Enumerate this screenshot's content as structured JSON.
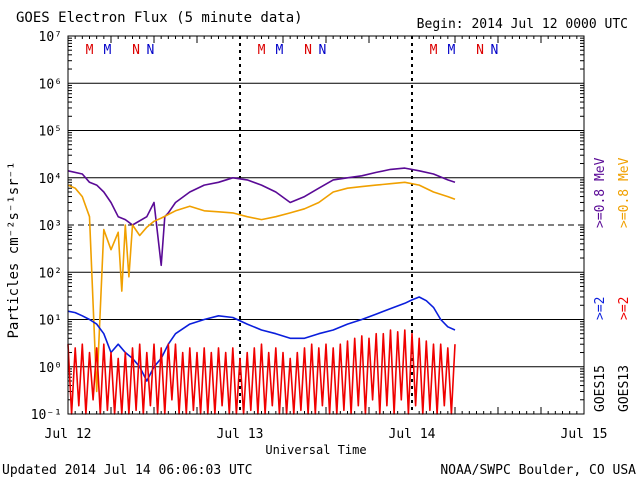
{
  "header": {
    "title": "GOES Electron Flux (5 minute data)",
    "begin": "Begin: 2014 Jul 12 0000 UTC"
  },
  "footer": {
    "updated": "Updated 2014 Jul 14 06:06:03 UTC",
    "credit": "NOAA/SWPC Boulder, CO USA"
  },
  "colors": {
    "purple": "#5a0a96",
    "orange": "#f0a000",
    "blue": "#0a1edc",
    "red": "#f00000",
    "mark_red": "#dc0000",
    "mark_blue": "#0000c8"
  },
  "chart_data": {
    "type": "line",
    "title": "GOES Electron Flux (5 minute data)",
    "xlabel": "Universal Time",
    "ylabel": "Particles cm⁻²s⁻¹sr⁻¹",
    "y_scale": "log",
    "ylim": [
      0.1,
      10000000
    ],
    "xlim": [
      "2014-07-12 00:00",
      "2014-07-15 00:00"
    ],
    "x_ticks": [
      "Jul 12",
      "Jul 13",
      "Jul 14",
      "Jul 15"
    ],
    "y_ticks": [
      "10⁻¹",
      "10⁰",
      "10¹",
      "10²",
      "10³",
      "10⁴",
      "10⁵",
      "10⁶",
      "10⁷"
    ],
    "grid": "horizontal lines at each decade; dashed at 10³; dashed vertical at day boundaries",
    "legend": {
      "right_labels_top": [
        {
          "text": ">=0.8 MeV",
          "color": "#5a0a96"
        },
        {
          "text": ">=0.8 MeV",
          "color": "#f0a000"
        }
      ],
      "right_labels_bottom": [
        {
          "text": ">=2",
          "color": "#0a1edc"
        },
        {
          "text": ">=2",
          "color": "#f00000"
        }
      ],
      "satellites": [
        "GOES15",
        "GOES13"
      ]
    },
    "markers": [
      {
        "t": "2014-07-12 03:00",
        "label": "M",
        "color": "#dc0000"
      },
      {
        "t": "2014-07-12 05:30",
        "label": "M",
        "color": "#0000c8"
      },
      {
        "t": "2014-07-12 09:30",
        "label": "N",
        "color": "#dc0000"
      },
      {
        "t": "2014-07-12 11:30",
        "label": "N",
        "color": "#0000c8"
      },
      {
        "t": "2014-07-13 03:00",
        "label": "M",
        "color": "#dc0000"
      },
      {
        "t": "2014-07-13 05:30",
        "label": "M",
        "color": "#0000c8"
      },
      {
        "t": "2014-07-13 09:30",
        "label": "N",
        "color": "#dc0000"
      },
      {
        "t": "2014-07-13 11:30",
        "label": "N",
        "color": "#0000c8"
      },
      {
        "t": "2014-07-14 03:00",
        "label": "M",
        "color": "#dc0000"
      },
      {
        "t": "2014-07-14 05:30",
        "label": "M",
        "color": "#0000c8"
      },
      {
        "t": "2014-07-14 09:30",
        "label": "N",
        "color": "#dc0000"
      },
      {
        "t": "2014-07-14 11:30",
        "label": "N",
        "color": "#0000c8"
      }
    ],
    "series": [
      {
        "color": "#5a0a96",
        "t": [
          "2014-07-12 00:00",
          "2014-07-12 02:00",
          "2014-07-12 03:00",
          "2014-07-12 04:00",
          "2014-07-12 05:00",
          "2014-07-12 06:00",
          "2014-07-12 07:00",
          "2014-07-12 08:00",
          "2014-07-12 09:00",
          "2014-07-12 11:00",
          "2014-07-12 12:00",
          "2014-07-12 13:00",
          "2014-07-12 13:30",
          "2014-07-12 14:00",
          "2014-07-12 15:00",
          "2014-07-12 17:00",
          "2014-07-12 19:00",
          "2014-07-12 21:00",
          "2014-07-12 23:00",
          "2014-07-13 01:00",
          "2014-07-13 03:00",
          "2014-07-13 05:00",
          "2014-07-13 07:00",
          "2014-07-13 09:00",
          "2014-07-13 11:00",
          "2014-07-13 13:00",
          "2014-07-13 15:00",
          "2014-07-13 17:00",
          "2014-07-13 19:00",
          "2014-07-13 21:00",
          "2014-07-13 23:00",
          "2014-07-14 01:00",
          "2014-07-14 03:00",
          "2014-07-14 05:00",
          "2014-07-14 06:00"
        ],
        "values": [
          14000,
          12000,
          8000,
          7000,
          5000,
          3000,
          1500,
          1300,
          1000,
          1500,
          3000,
          140,
          1500,
          1800,
          3000,
          5000,
          7000,
          8000,
          10000,
          9000,
          7000,
          5000,
          3000,
          4000,
          6000,
          9000,
          10000,
          11000,
          13000,
          15000,
          16000,
          14000,
          12000,
          9000,
          8000
        ]
      },
      {
        "color": "#f0a000",
        "t": [
          "2014-07-12 00:00",
          "2014-07-12 01:00",
          "2014-07-12 02:00",
          "2014-07-12 03:00",
          "2014-07-12 04:00",
          "2014-07-12 05:00",
          "2014-07-12 06:00",
          "2014-07-12 07:00",
          "2014-07-12 07:30",
          "2014-07-12 08:00",
          "2014-07-12 08:30",
          "2014-07-12 09:00",
          "2014-07-12 10:00",
          "2014-07-12 11:00",
          "2014-07-12 12:00",
          "2014-07-12 13:00",
          "2014-07-12 15:00",
          "2014-07-12 17:00",
          "2014-07-12 19:00",
          "2014-07-12 21:00",
          "2014-07-12 23:00",
          "2014-07-13 01:00",
          "2014-07-13 03:00",
          "2014-07-13 05:00",
          "2014-07-13 07:00",
          "2014-07-13 09:00",
          "2014-07-13 11:00",
          "2014-07-13 13:00",
          "2014-07-13 15:00",
          "2014-07-13 17:00",
          "2014-07-13 19:00",
          "2014-07-13 21:00",
          "2014-07-13 23:00",
          "2014-07-14 01:00",
          "2014-07-14 03:00",
          "2014-07-14 05:00",
          "2014-07-14 06:00"
        ],
        "values": [
          7000,
          6000,
          4000,
          1500,
          0.3,
          800,
          300,
          700,
          40,
          1000,
          80,
          1000,
          600,
          900,
          1200,
          1400,
          2000,
          2500,
          2000,
          1900,
          1800,
          1500,
          1300,
          1500,
          1800,
          2200,
          3000,
          5000,
          6000,
          6500,
          7000,
          7500,
          8000,
          7000,
          5000,
          4000,
          3500
        ]
      },
      {
        "color": "#0a1edc",
        "t": [
          "2014-07-12 00:00",
          "2014-07-12 01:00",
          "2014-07-12 02:00",
          "2014-07-12 03:00",
          "2014-07-12 04:00",
          "2014-07-12 05:00",
          "2014-07-12 06:00",
          "2014-07-12 07:00",
          "2014-07-12 08:00",
          "2014-07-12 09:00",
          "2014-07-12 10:00",
          "2014-07-12 11:00",
          "2014-07-12 12:00",
          "2014-07-12 13:00",
          "2014-07-12 14:00",
          "2014-07-12 15:00",
          "2014-07-12 17:00",
          "2014-07-12 19:00",
          "2014-07-12 21:00",
          "2014-07-12 23:00",
          "2014-07-13 01:00",
          "2014-07-13 03:00",
          "2014-07-13 05:00",
          "2014-07-13 07:00",
          "2014-07-13 09:00",
          "2014-07-13 11:00",
          "2014-07-13 13:00",
          "2014-07-13 15:00",
          "2014-07-13 17:00",
          "2014-07-13 19:00",
          "2014-07-13 21:00",
          "2014-07-13 23:00",
          "2014-07-14 00:00",
          "2014-07-14 01:00",
          "2014-07-14 02:00",
          "2014-07-14 03:00",
          "2014-07-14 04:00",
          "2014-07-14 05:00",
          "2014-07-14 06:00"
        ],
        "values": [
          15,
          14,
          12,
          10,
          8,
          5,
          2,
          3,
          2,
          1.5,
          1,
          0.5,
          1,
          1.5,
          3,
          5,
          8,
          10,
          12,
          11,
          8,
          6,
          5,
          4,
          4,
          5,
          6,
          8,
          10,
          13,
          17,
          22,
          26,
          30,
          25,
          18,
          10,
          7,
          6
        ]
      },
      {
        "color": "#f00000",
        "t": [
          "2014-07-12 00:00",
          "2014-07-12 00:30",
          "2014-07-12 01:00",
          "2014-07-12 01:30",
          "2014-07-12 02:00",
          "2014-07-12 02:30",
          "2014-07-12 03:00",
          "2014-07-12 03:30",
          "2014-07-12 04:00",
          "2014-07-12 04:30",
          "2014-07-12 05:00",
          "2014-07-12 05:30",
          "2014-07-12 06:00",
          "2014-07-12 06:30",
          "2014-07-12 07:00",
          "2014-07-12 07:30",
          "2014-07-12 08:00",
          "2014-07-12 08:30",
          "2014-07-12 09:00",
          "2014-07-12 09:30",
          "2014-07-12 10:00",
          "2014-07-12 10:30",
          "2014-07-12 11:00",
          "2014-07-12 11:30",
          "2014-07-12 12:00",
          "2014-07-12 12:30",
          "2014-07-12 13:00",
          "2014-07-12 13:30",
          "2014-07-12 14:00",
          "2014-07-12 14:30",
          "2014-07-12 15:00",
          "2014-07-12 15:30",
          "2014-07-12 16:00",
          "2014-07-12 16:30",
          "2014-07-12 17:00",
          "2014-07-12 17:30",
          "2014-07-12 18:00",
          "2014-07-12 18:30",
          "2014-07-12 19:00",
          "2014-07-12 19:30",
          "2014-07-12 20:00",
          "2014-07-12 20:30",
          "2014-07-12 21:00",
          "2014-07-12 21:30",
          "2014-07-12 22:00",
          "2014-07-12 22:30",
          "2014-07-12 23:00",
          "2014-07-12 23:30",
          "2014-07-13 00:00",
          "2014-07-13 00:30",
          "2014-07-13 01:00",
          "2014-07-13 01:30",
          "2014-07-13 02:00",
          "2014-07-13 02:30",
          "2014-07-13 03:00",
          "2014-07-13 03:30",
          "2014-07-13 04:00",
          "2014-07-13 04:30",
          "2014-07-13 05:00",
          "2014-07-13 05:30",
          "2014-07-13 06:00",
          "2014-07-13 06:30",
          "2014-07-13 07:00",
          "2014-07-13 07:30",
          "2014-07-13 08:00",
          "2014-07-13 08:30",
          "2014-07-13 09:00",
          "2014-07-13 09:30",
          "2014-07-13 10:00",
          "2014-07-13 10:30",
          "2014-07-13 11:00",
          "2014-07-13 11:30",
          "2014-07-13 12:00",
          "2014-07-13 12:30",
          "2014-07-13 13:00",
          "2014-07-13 13:30",
          "2014-07-13 14:00",
          "2014-07-13 14:30",
          "2014-07-13 15:00",
          "2014-07-13 15:30",
          "2014-07-13 16:00",
          "2014-07-13 16:30",
          "2014-07-13 17:00",
          "2014-07-13 17:30",
          "2014-07-13 18:00",
          "2014-07-13 18:30",
          "2014-07-13 19:00",
          "2014-07-13 19:30",
          "2014-07-13 20:00",
          "2014-07-13 20:30",
          "2014-07-13 21:00",
          "2014-07-13 21:30",
          "2014-07-13 22:00",
          "2014-07-13 22:30",
          "2014-07-13 23:00",
          "2014-07-13 23:30",
          "2014-07-14 00:00",
          "2014-07-14 00:30",
          "2014-07-14 01:00",
          "2014-07-14 01:30",
          "2014-07-14 02:00",
          "2014-07-14 02:30",
          "2014-07-14 03:00",
          "2014-07-14 03:30",
          "2014-07-14 04:00",
          "2014-07-14 04:30",
          "2014-07-14 05:00",
          "2014-07-14 05:30",
          "2014-07-14 06:00"
        ],
        "values": [
          3,
          0.1,
          2.5,
          0.15,
          3,
          0.1,
          2,
          0.2,
          2.5,
          0.1,
          3,
          0.12,
          2,
          0.1,
          1.5,
          0.1,
          2,
          0.1,
          2.5,
          0.12,
          3,
          0.1,
          2,
          0.15,
          3,
          0.1,
          2.5,
          0.1,
          3,
          0.2,
          3,
          0.1,
          2,
          0.1,
          2.5,
          0.12,
          2,
          0.1,
          2.5,
          0.1,
          2,
          0.1,
          2.5,
          0.15,
          2,
          0.1,
          2.5,
          0.1,
          1.5,
          0.1,
          2,
          0.12,
          2.5,
          0.1,
          3,
          0.1,
          2,
          0.15,
          2.5,
          0.1,
          2,
          0.1,
          1.5,
          0.1,
          2,
          0.12,
          2.5,
          0.1,
          3,
          0.1,
          2.5,
          0.15,
          3,
          0.1,
          2.5,
          0.1,
          3,
          0.12,
          3.5,
          0.1,
          4,
          0.15,
          4.5,
          0.1,
          4,
          0.2,
          5,
          0.1,
          5,
          0.15,
          6,
          0.1,
          5.5,
          0.2,
          6,
          0.1,
          5,
          0.15,
          4,
          0.1,
          3.5,
          0.12,
          3,
          0.1,
          3,
          0.15,
          2.5,
          0.1,
          3
        ]
      }
    ]
  }
}
